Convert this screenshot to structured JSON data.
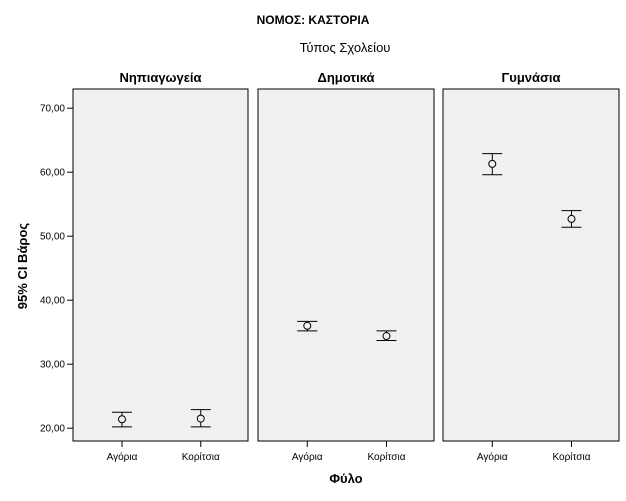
{
  "chart_data": {
    "type": "scatter",
    "title": "ΝΟΜΟΣ: ΚΑΣΤΟΡΙΑ",
    "panel_group_label": "Τύπος Σχολείου",
    "xlabel": "Φύλο",
    "ylabel": "95% CI Βάρος",
    "ylim": [
      18,
      73
    ],
    "yticks": [
      "20,00",
      "30,00",
      "40,00",
      "50,00",
      "60,00",
      "70,00"
    ],
    "ytick_values": [
      20,
      30,
      40,
      50,
      60,
      70
    ],
    "categories": [
      "Αγόρια",
      "Κορίτσια"
    ],
    "panels": [
      {
        "name": "Νηπιαγωγεία",
        "points": [
          {
            "category": "Αγόρια",
            "mean": 21.4,
            "lower": 20.2,
            "upper": 22.5
          },
          {
            "category": "Κορίτσια",
            "mean": 21.5,
            "lower": 20.2,
            "upper": 22.9
          }
        ]
      },
      {
        "name": "Δημοτικά",
        "points": [
          {
            "category": "Αγόρια",
            "mean": 36.0,
            "lower": 35.2,
            "upper": 36.7
          },
          {
            "category": "Κορίτσια",
            "mean": 34.4,
            "lower": 33.7,
            "upper": 35.2
          }
        ]
      },
      {
        "name": "Γυμνάσια",
        "points": [
          {
            "category": "Αγόρια",
            "mean": 61.3,
            "lower": 59.6,
            "upper": 62.9
          },
          {
            "category": "Κορίτσια",
            "mean": 52.7,
            "lower": 51.4,
            "upper": 54.0
          }
        ]
      }
    ],
    "grid": false,
    "colors": {
      "panel_bg": "#f0f0f0",
      "frame": "#000000",
      "marker": "#000000"
    }
  }
}
